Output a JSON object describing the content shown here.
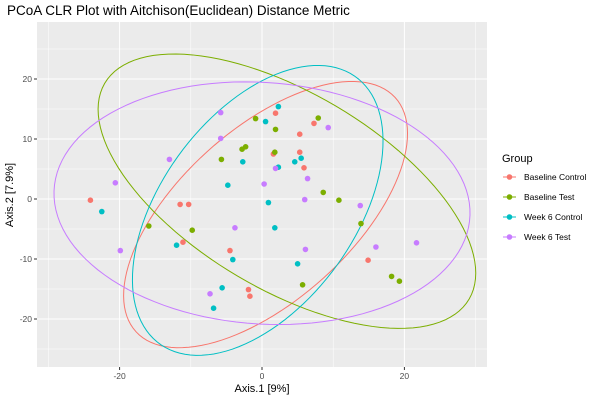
{
  "chart_data": {
    "type": "scatter",
    "title": "PCoA CLR Plot with Aitchison(Euclidean) Distance Metric",
    "xlabel": "Axis.1   [9%]",
    "ylabel": "Axis.2   [7.9%]",
    "xlim": [
      -31.6,
      31.6
    ],
    "ylim": [
      -28,
      29.5
    ],
    "x_ticks": [
      -20,
      0,
      20
    ],
    "x_tick_labels": [
      "-20",
      "0",
      "20"
    ],
    "y_ticks": [
      -20,
      -10,
      0,
      10,
      20
    ],
    "y_tick_labels": [
      "-20",
      "-10",
      "0",
      "10",
      "20"
    ],
    "grid": true,
    "legend": {
      "title": "Group",
      "position": "right"
    },
    "series": [
      {
        "name": "Baseline Control",
        "color": "#F8766D",
        "points": [
          [
            -24.1,
            -0.2
          ],
          [
            -10.3,
            -0.9
          ],
          [
            -11.5,
            -0.9
          ],
          [
            -11.1,
            -7.2
          ],
          [
            -4.5,
            -8.6
          ],
          [
            -1.7,
            -16.2
          ],
          [
            -1.9,
            -15.1
          ],
          [
            1.9,
            14.3
          ],
          [
            5.3,
            10.8
          ],
          [
            7.3,
            12.6
          ],
          [
            1.6,
            7.5
          ],
          [
            5.9,
            5.2
          ],
          [
            5.3,
            7.8
          ],
          [
            14.9,
            -10.2
          ]
        ]
      },
      {
        "name": "Baseline Test",
        "color": "#7CAE00",
        "points": [
          [
            -0.9,
            13.4
          ],
          [
            1.9,
            11.6
          ],
          [
            -2.8,
            8.3
          ],
          [
            -2.3,
            8.7
          ],
          [
            -5.7,
            6.6
          ],
          [
            1.8,
            7.8
          ],
          [
            7.9,
            13.5
          ],
          [
            8.6,
            1.1
          ],
          [
            10.8,
            -0.2
          ],
          [
            13.9,
            -4.1
          ],
          [
            18.2,
            -12.9
          ],
          [
            19.3,
            -13.7
          ],
          [
            -9.8,
            -5.2
          ],
          [
            -15.9,
            -4.5
          ],
          [
            5.7,
            -14.3
          ]
        ]
      },
      {
        "name": "Week 6 Control",
        "color": "#00BFC4",
        "points": [
          [
            -22.5,
            -2.1
          ],
          [
            -12.0,
            -7.7
          ],
          [
            -6.8,
            -18.2
          ],
          [
            -5.6,
            -14.8
          ],
          [
            -4.1,
            -10.1
          ],
          [
            -4.8,
            2.3
          ],
          [
            -2.7,
            6.2
          ],
          [
            1.8,
            -4.8
          ],
          [
            0.9,
            -0.6
          ],
          [
            5.0,
            -10.8
          ],
          [
            2.3,
            5.3
          ],
          [
            4.6,
            6.2
          ],
          [
            5.5,
            6.8
          ],
          [
            0.5,
            12.9
          ],
          [
            2.3,
            15.4
          ]
        ]
      },
      {
        "name": "Week 6 Test",
        "color": "#C77CFF",
        "points": [
          [
            -20.6,
            2.7
          ],
          [
            -19.9,
            -8.6
          ],
          [
            -13.0,
            6.6
          ],
          [
            -5.8,
            14.4
          ],
          [
            -5.8,
            10.1
          ],
          [
            -3.8,
            -4.8
          ],
          [
            0.3,
            2.5
          ],
          [
            1.9,
            5.1
          ],
          [
            6.0,
            -0.1
          ],
          [
            6.4,
            3.4
          ],
          [
            9.3,
            11.9
          ],
          [
            13.8,
            -1.1
          ],
          [
            16.0,
            -8.0
          ],
          [
            21.7,
            -7.3
          ],
          [
            6.1,
            -8.4
          ],
          [
            -7.3,
            -15.8
          ]
        ]
      }
    ],
    "ellipses": [
      {
        "group": "Baseline Control",
        "color": "#F8766D",
        "cx": 0.5,
        "cy": -2.6,
        "rx": 26.8,
        "ry": 13.1,
        "angle_deg": 50
      },
      {
        "group": "Baseline Test",
        "color": "#7CAE00",
        "cx": 3.5,
        "cy": 1.3,
        "rx": 31.4,
        "ry": 15.5,
        "angle_deg": -38
      },
      {
        "group": "Week 6 Control",
        "color": "#00BFC4",
        "cx": -0.6,
        "cy": -1.9,
        "rx": 26.3,
        "ry": 14.2,
        "angle_deg": 62
      },
      {
        "group": "Week 6 Test",
        "color": "#C77CFF",
        "cx": 0,
        "cy": -0.7,
        "rx": 29.3,
        "ry": 20.1,
        "angle_deg": -6
      }
    ]
  }
}
